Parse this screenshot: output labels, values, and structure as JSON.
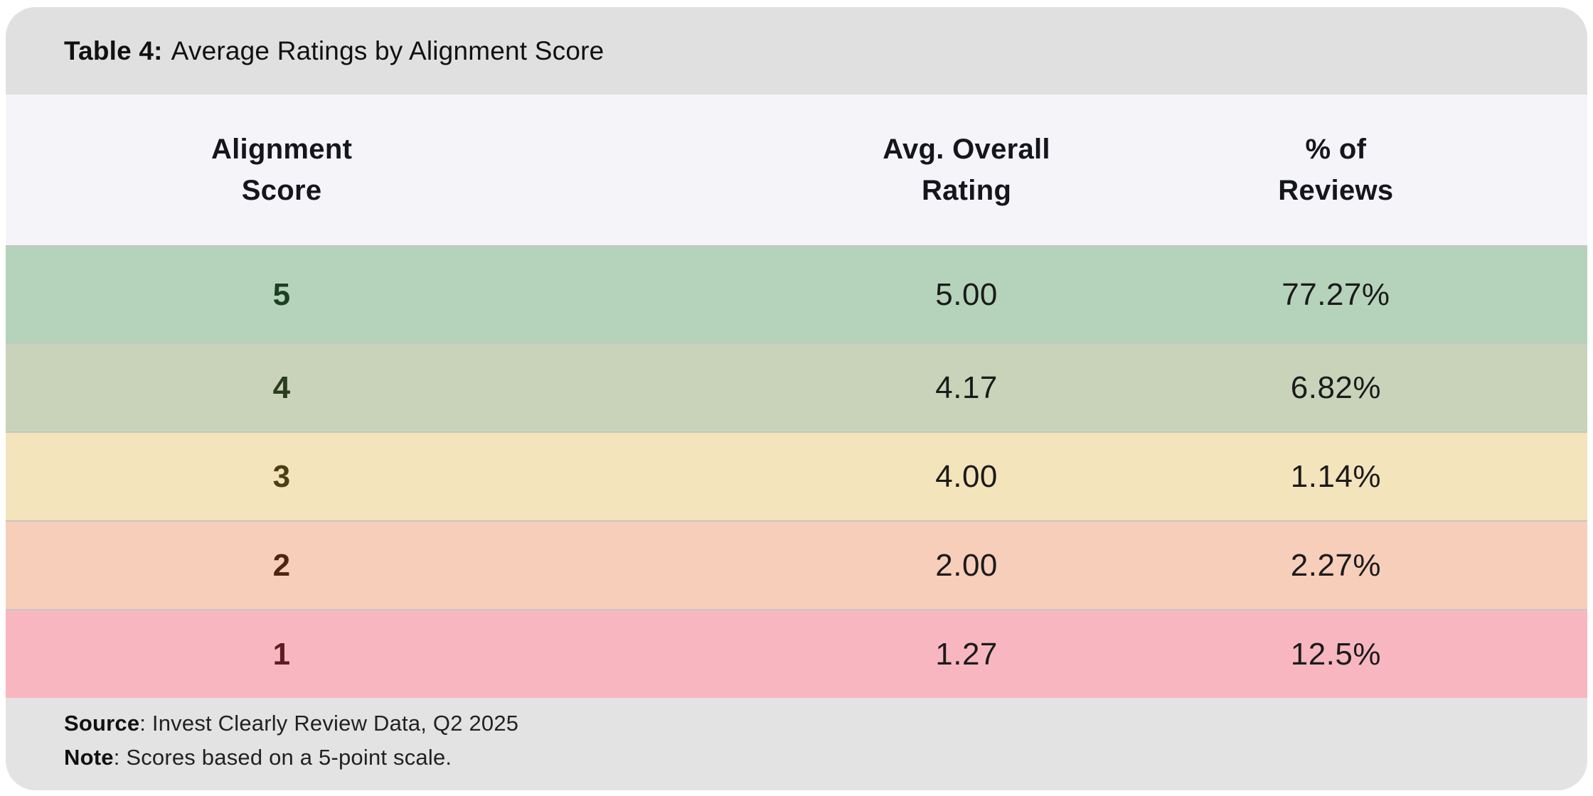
{
  "title": {
    "label": "Table 4:",
    "text": "Average Ratings by Alignment Score"
  },
  "table": {
    "columns": [
      {
        "id": "alignment_score",
        "line1": "Alignment",
        "line2": "Score"
      },
      {
        "id": "avg_overall_rating",
        "line1": "Avg. Overall",
        "line2": "Rating"
      },
      {
        "id": "pct_of_reviews",
        "line1": "% of",
        "line2": "Reviews"
      }
    ],
    "rows": [
      {
        "score": "5",
        "avg_rating": "5.00",
        "pct_reviews": "77.27%",
        "bg": "#b5d3bb",
        "score_color": "#1c3e22"
      },
      {
        "score": "4",
        "avg_rating": "4.17",
        "pct_reviews": "6.82%",
        "bg": "#c9d3ba",
        "score_color": "#2a3d1d"
      },
      {
        "score": "3",
        "avg_rating": "4.00",
        "pct_reviews": "1.14%",
        "bg": "#f4e4bb",
        "score_color": "#4a3e15"
      },
      {
        "score": "2",
        "avg_rating": "2.00",
        "pct_reviews": "2.27%",
        "bg": "#f7ceba",
        "score_color": "#4e2512"
      },
      {
        "score": "1",
        "avg_rating": "1.27",
        "pct_reviews": "12.5%",
        "bg": "#f8b7c0",
        "score_color": "#5e1c22"
      }
    ]
  },
  "footer": {
    "source_label": "Source",
    "source_text": ": Invest Clearly Review Data, Q2 2025",
    "note_label": "Note",
    "note_text": ": Scores based on a 5-point scale."
  },
  "colors": {
    "title_bar_bg": "#e0e0e0",
    "header_bg": "#f4f4f9",
    "footer_bg": "#e3e3e3",
    "row_border": "#c6c6c4",
    "value_text": "#1b1b1b"
  },
  "chart_data": {
    "type": "table",
    "title": "Table 4: Average Ratings by Alignment Score",
    "columns": [
      "Alignment Score",
      "Avg. Overall Rating",
      "% of Reviews"
    ],
    "rows": [
      [
        5,
        5.0,
        "77.27%"
      ],
      [
        4,
        4.17,
        "6.82%"
      ],
      [
        3,
        4.0,
        "1.14%"
      ],
      [
        2,
        2.0,
        "2.27%"
      ],
      [
        1,
        1.27,
        "12.5%"
      ]
    ],
    "source": "Invest Clearly Review Data, Q2 2025",
    "note": "Scores based on a 5-point scale."
  }
}
